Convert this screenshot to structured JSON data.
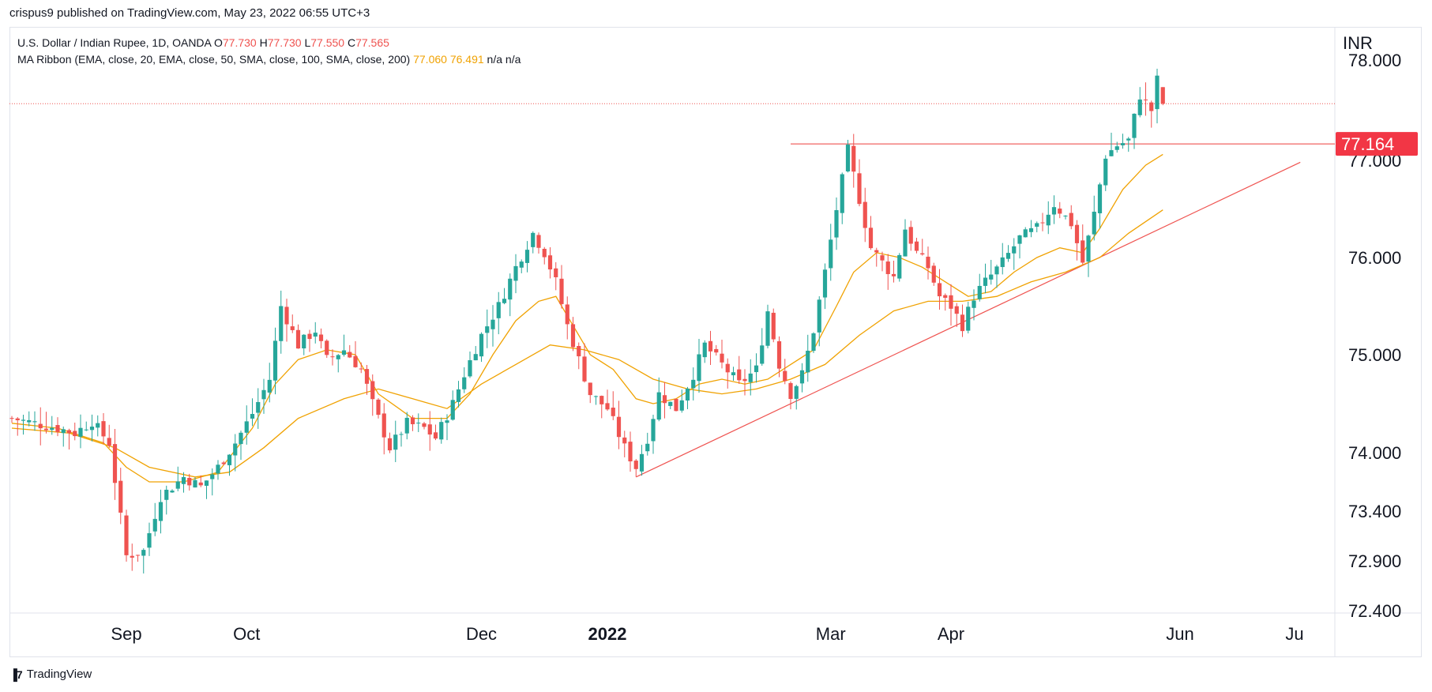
{
  "header": {
    "published_text": "crispus9 published on TradingView.com, May 23, 2022 06:55 UTC+3"
  },
  "legend": {
    "symbol": "U.S. Dollar / Indian Rupee, 1D, OANDA",
    "o_label": "O",
    "o_value": "77.730",
    "h_label": "H",
    "h_value": "77.730",
    "l_label": "L",
    "l_value": "77.550",
    "c_label": "C",
    "c_value": "77.565",
    "ma_name": "MA Ribbon (EMA, close, 20, EMA, close, 50, SMA, close, 100, SMA, close, 200)",
    "ma_v1": "77.060",
    "ma_v2": "76.491",
    "ma_v3": "n/a",
    "ma_v4": "n/a"
  },
  "footer": {
    "brand": "TradingView"
  },
  "colors": {
    "up": "#26a69a",
    "down": "#ef5350",
    "ma": "#f0a202",
    "trend": "#ef5350",
    "price_tag_bg": "#f23645"
  },
  "chart_data": {
    "type": "candlestick",
    "currency_label": "INR",
    "y_ticks": [
      "78.000",
      "77.000",
      "76.000",
      "75.000",
      "74.000",
      "73.400",
      "72.900",
      "72.400"
    ],
    "y_tick_values": [
      78.0,
      77.0,
      76.0,
      75.0,
      74.0,
      73.4,
      72.9,
      72.4
    ],
    "ylim": [
      72.4,
      78.0
    ],
    "x_ticks": [
      {
        "label": "Sep",
        "index": 20,
        "bold": false
      },
      {
        "label": "Oct",
        "index": 41,
        "bold": false
      },
      {
        "label": "Dec",
        "index": 82,
        "bold": false
      },
      {
        "label": "2022",
        "index": 104,
        "bold": true
      },
      {
        "label": "Mar",
        "index": 143,
        "bold": false
      },
      {
        "label": "Apr",
        "index": 164,
        "bold": false
      },
      {
        "label": "Jun",
        "index": 204,
        "bold": false
      },
      {
        "label": "Ju",
        "index": 224,
        "bold": false
      }
    ],
    "current_price": 77.565,
    "price_tag": "77.164",
    "resistance": {
      "value": 77.164,
      "from_index": 136
    },
    "trendline": {
      "from_index": 109,
      "from_value": 73.75,
      "to_index": 225,
      "to_value": 76.98
    },
    "close_path": [
      [
        0,
        74.35
      ],
      [
        4,
        74.3
      ],
      [
        8,
        74.25
      ],
      [
        11,
        74.2
      ],
      [
        14,
        74.32
      ],
      [
        17,
        74.1
      ],
      [
        20,
        72.95
      ],
      [
        23,
        73.0
      ],
      [
        26,
        73.55
      ],
      [
        30,
        73.75
      ],
      [
        33,
        73.65
      ],
      [
        36,
        73.85
      ],
      [
        39,
        74.1
      ],
      [
        42,
        74.4
      ],
      [
        45,
        74.75
      ],
      [
        47,
        75.5
      ],
      [
        50,
        75.1
      ],
      [
        53,
        75.25
      ],
      [
        55,
        74.95
      ],
      [
        58,
        75.05
      ],
      [
        61,
        74.85
      ],
      [
        63,
        74.5
      ],
      [
        66,
        74.05
      ],
      [
        69,
        74.3
      ],
      [
        72,
        74.25
      ],
      [
        74,
        74.15
      ],
      [
        77,
        74.5
      ],
      [
        79,
        74.8
      ],
      [
        82,
        75.2
      ],
      [
        85,
        75.5
      ],
      [
        88,
        75.9
      ],
      [
        91,
        76.25
      ],
      [
        93,
        76.05
      ],
      [
        95,
        75.75
      ],
      [
        97,
        75.3
      ],
      [
        99,
        74.95
      ],
      [
        101,
        74.6
      ],
      [
        104,
        74.45
      ],
      [
        107,
        74.05
      ],
      [
        109,
        73.85
      ],
      [
        111,
        74.15
      ],
      [
        113,
        74.6
      ],
      [
        116,
        74.45
      ],
      [
        119,
        74.8
      ],
      [
        121,
        75.1
      ],
      [
        124,
        74.9
      ],
      [
        127,
        74.7
      ],
      [
        130,
        74.85
      ],
      [
        132,
        75.45
      ],
      [
        134,
        74.9
      ],
      [
        136,
        74.6
      ],
      [
        138,
        74.8
      ],
      [
        140,
        75.25
      ],
      [
        142,
        75.85
      ],
      [
        144,
        76.5
      ],
      [
        146,
        77.1
      ],
      [
        148,
        76.6
      ],
      [
        150,
        76.1
      ],
      [
        152,
        75.95
      ],
      [
        154,
        75.8
      ],
      [
        156,
        76.3
      ],
      [
        158,
        76.05
      ],
      [
        160,
        75.9
      ],
      [
        162,
        75.6
      ],
      [
        164,
        75.5
      ],
      [
        166,
        75.3
      ],
      [
        168,
        75.6
      ],
      [
        170,
        75.75
      ],
      [
        173,
        75.95
      ],
      [
        176,
        76.2
      ],
      [
        179,
        76.3
      ],
      [
        182,
        76.55
      ],
      [
        185,
        76.35
      ],
      [
        187,
        75.95
      ],
      [
        189,
        76.45
      ],
      [
        191,
        77.05
      ],
      [
        193,
        77.15
      ],
      [
        195,
        77.2
      ],
      [
        197,
        77.65
      ],
      [
        199,
        77.5
      ],
      [
        200,
        77.8
      ],
      [
        201,
        77.565
      ]
    ],
    "ma_fast": [
      [
        0,
        74.3
      ],
      [
        8,
        74.25
      ],
      [
        16,
        74.1
      ],
      [
        20,
        73.85
      ],
      [
        24,
        73.7
      ],
      [
        30,
        73.7
      ],
      [
        36,
        73.8
      ],
      [
        42,
        74.25
      ],
      [
        46,
        74.7
      ],
      [
        50,
        74.95
      ],
      [
        55,
        75.05
      ],
      [
        60,
        75.0
      ],
      [
        64,
        74.6
      ],
      [
        70,
        74.35
      ],
      [
        76,
        74.35
      ],
      [
        80,
        74.6
      ],
      [
        84,
        75.0
      ],
      [
        88,
        75.35
      ],
      [
        92,
        75.55
      ],
      [
        95,
        75.6
      ],
      [
        98,
        75.3
      ],
      [
        101,
        75.0
      ],
      [
        105,
        74.85
      ],
      [
        109,
        74.55
      ],
      [
        112,
        74.5
      ],
      [
        116,
        74.55
      ],
      [
        120,
        74.7
      ],
      [
        124,
        74.75
      ],
      [
        128,
        74.7
      ],
      [
        132,
        74.75
      ],
      [
        136,
        74.9
      ],
      [
        140,
        75.05
      ],
      [
        144,
        75.5
      ],
      [
        147,
        75.85
      ],
      [
        151,
        76.05
      ],
      [
        155,
        76.0
      ],
      [
        159,
        75.9
      ],
      [
        163,
        75.75
      ],
      [
        167,
        75.6
      ],
      [
        171,
        75.65
      ],
      [
        175,
        75.85
      ],
      [
        179,
        76.0
      ],
      [
        183,
        76.1
      ],
      [
        187,
        76.05
      ],
      [
        190,
        76.3
      ],
      [
        194,
        76.7
      ],
      [
        198,
        76.95
      ],
      [
        201,
        77.06
      ]
    ],
    "ma_slow": [
      [
        0,
        74.25
      ],
      [
        10,
        74.2
      ],
      [
        18,
        74.05
      ],
      [
        24,
        73.85
      ],
      [
        32,
        73.75
      ],
      [
        38,
        73.8
      ],
      [
        44,
        74.05
      ],
      [
        50,
        74.35
      ],
      [
        58,
        74.55
      ],
      [
        64,
        74.65
      ],
      [
        70,
        74.55
      ],
      [
        76,
        74.45
      ],
      [
        82,
        74.7
      ],
      [
        88,
        74.9
      ],
      [
        94,
        75.1
      ],
      [
        100,
        75.05
      ],
      [
        106,
        74.95
      ],
      [
        112,
        74.75
      ],
      [
        118,
        74.65
      ],
      [
        124,
        74.6
      ],
      [
        130,
        74.65
      ],
      [
        136,
        74.75
      ],
      [
        142,
        74.9
      ],
      [
        148,
        75.2
      ],
      [
        154,
        75.45
      ],
      [
        160,
        75.55
      ],
      [
        166,
        75.55
      ],
      [
        172,
        75.6
      ],
      [
        178,
        75.75
      ],
      [
        184,
        75.85
      ],
      [
        190,
        76.0
      ],
      [
        195,
        76.25
      ],
      [
        201,
        76.49
      ]
    ]
  }
}
